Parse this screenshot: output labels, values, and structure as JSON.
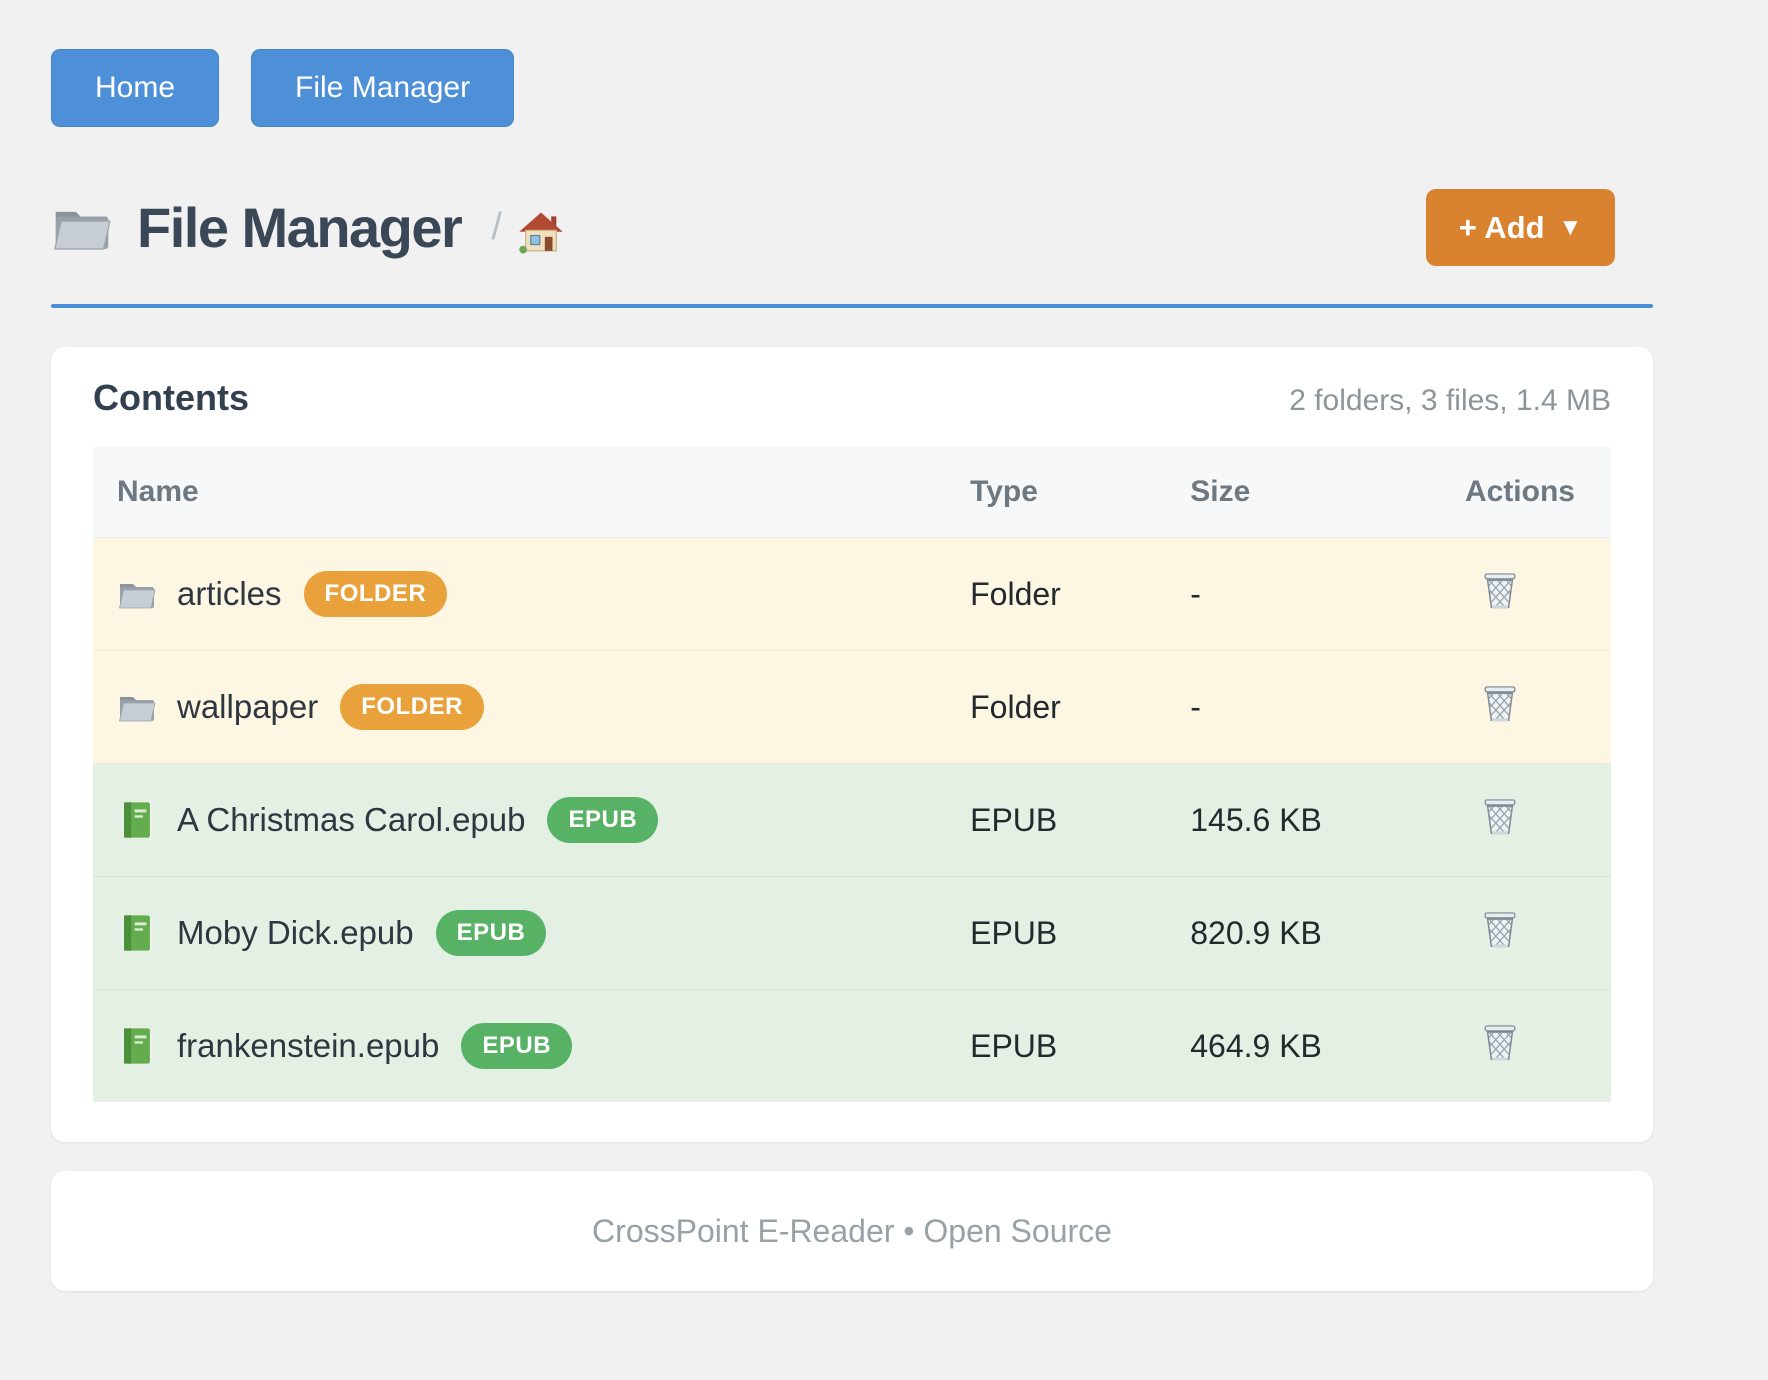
{
  "nav": {
    "home_label": "Home",
    "file_manager_label": "File Manager"
  },
  "header": {
    "title": "File Manager",
    "title_icon": "folder-icon",
    "breadcrumb": {
      "separator": "/",
      "home_icon": "home-icon"
    },
    "add_button": {
      "label": "+ Add",
      "caret": "▼"
    }
  },
  "content": {
    "heading": "Contents",
    "summary": "2 folders, 3 files, 1.4 MB",
    "table": {
      "columns": [
        "Name",
        "Type",
        "Size",
        "Actions"
      ],
      "rows": [
        {
          "name": "articles",
          "icon": "folder-icon",
          "badge": "FOLDER",
          "type": "Folder",
          "size": "-",
          "kind": "folder",
          "action_icon": "trash-icon"
        },
        {
          "name": "wallpaper",
          "icon": "folder-icon",
          "badge": "FOLDER",
          "type": "Folder",
          "size": "-",
          "kind": "folder",
          "action_icon": "trash-icon"
        },
        {
          "name": "A Christmas Carol.epub",
          "icon": "book-icon",
          "badge": "EPUB",
          "type": "EPUB",
          "size": "145.6 KB",
          "kind": "epub",
          "action_icon": "trash-icon"
        },
        {
          "name": "Moby Dick.epub",
          "icon": "book-icon",
          "badge": "EPUB",
          "type": "EPUB",
          "size": "820.9 KB",
          "kind": "epub",
          "action_icon": "trash-icon"
        },
        {
          "name": "frankenstein.epub",
          "icon": "book-icon",
          "badge": "EPUB",
          "type": "EPUB",
          "size": "464.9 KB",
          "kind": "epub",
          "action_icon": "trash-icon"
        }
      ]
    }
  },
  "footer": {
    "text": "CrossPoint E-Reader • Open Source"
  },
  "colors": {
    "nav_button": "#4e90d8",
    "accent_rule": "#4a90d9",
    "add_button": "#d9822f",
    "folder_row": "#fdf6e2",
    "epub_row": "#e4f0e4",
    "folder_badge": "#e9a23b",
    "epub_badge": "#57b265"
  }
}
